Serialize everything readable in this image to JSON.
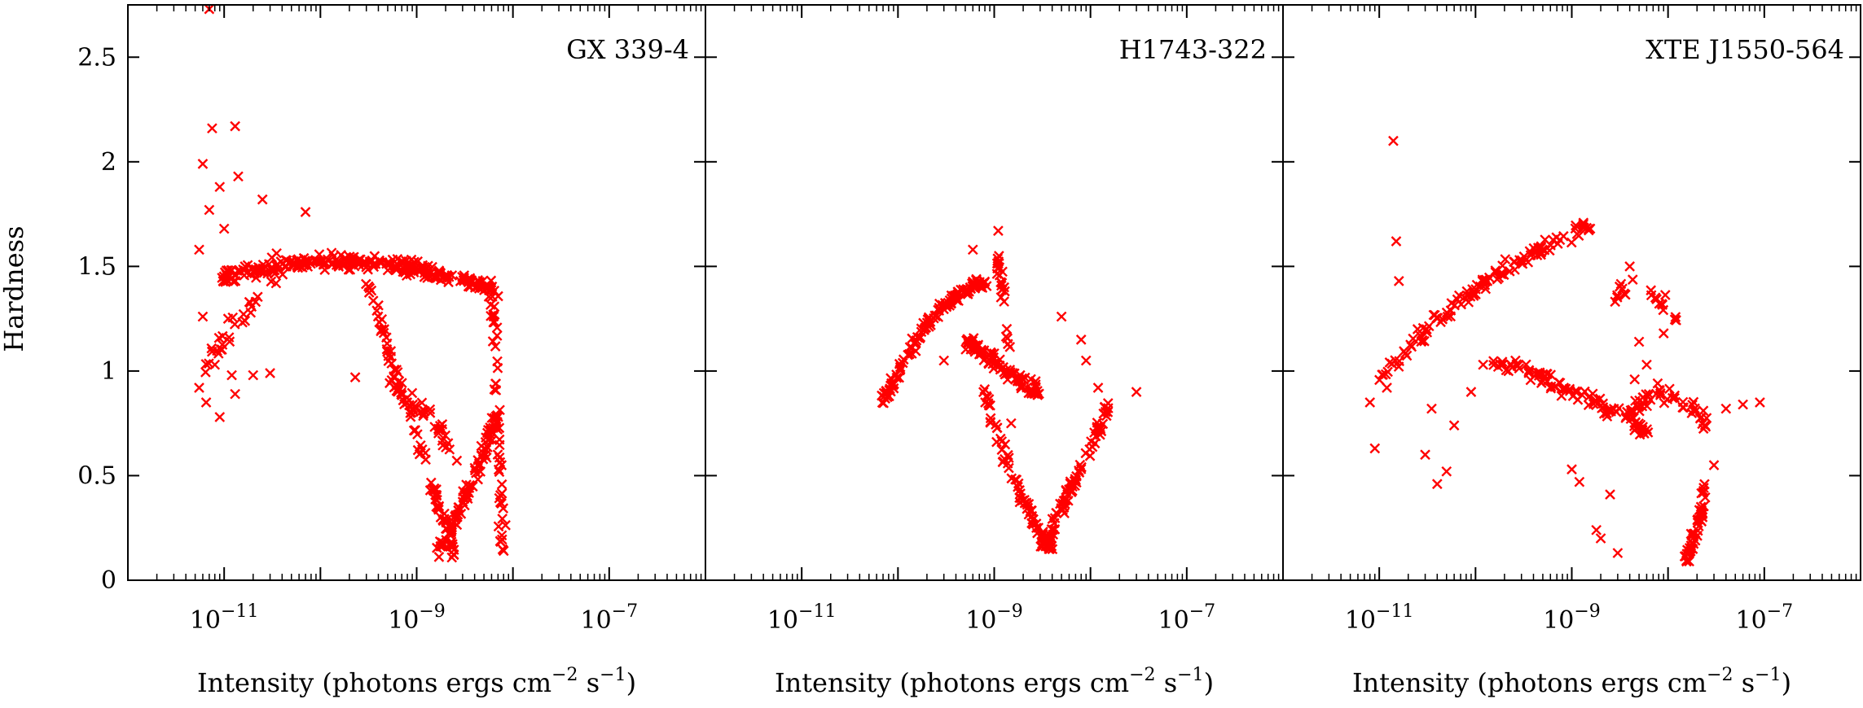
{
  "chart_data": {
    "type": "scatter",
    "x_scale": "log",
    "xlim": [
      1e-12,
      1e-06
    ],
    "ylim": [
      0,
      2.75
    ],
    "y_ticks": [
      0,
      0.5,
      1,
      1.5,
      2,
      2.5
    ],
    "y_tick_labels": [
      "0",
      "0.5",
      "1",
      "1.5",
      "2",
      "2.5"
    ],
    "x_tick_bases": [
      "10",
      "10",
      "10"
    ],
    "x_tick_exponents": [
      "−11",
      "−9",
      "−7"
    ],
    "x_tick_values": [
      1e-11,
      1e-09,
      1e-07
    ],
    "ylabel": "Hardness",
    "xlabel_prefix": "Intensity (photons ergs cm",
    "xlabel_exp1": "−2",
    "xlabel_mid": " s",
    "xlabel_exp2": "−1",
    "xlabel_suffix": ")",
    "marker": "x",
    "marker_color": "#ff0000",
    "legend": "none",
    "grid": false,
    "panels": [
      {
        "title": "GX 339-4",
        "arcs": [
          {
            "x0": 1e-11,
            "x1": 7e-09,
            "y": [
              1.45,
              1.62,
              1.38
            ],
            "n": 260,
            "noise": 0.05
          },
          {
            "x0": 3e-10,
            "x1": 2.5e-09,
            "y": [
              1.45,
              0.75,
              0.12
            ],
            "n": 90,
            "noise": 0.06
          },
          {
            "x0": 1.5e-09,
            "x1": 7e-09,
            "y": [
              0.12,
              0.35,
              0.8
            ],
            "n": 90,
            "noise": 0.06
          },
          {
            "x0": 6e-09,
            "x1": 8e-09,
            "y": [
              1.4,
              0.9,
              0.1
            ],
            "n": 50,
            "noise": 0.05
          },
          {
            "x0": 5e-10,
            "x1": 2.5e-09,
            "y": [
              0.95,
              0.85,
              0.6
            ],
            "n": 40,
            "noise": 0.08
          },
          {
            "x0": 6e-12,
            "x1": 4e-11,
            "y": [
              1.0,
              1.3,
              1.5
            ],
            "n": 30,
            "noise": 0.12
          }
        ],
        "points": [
          [
            7e-12,
            2.73
          ],
          [
            7.5e-12,
            2.16
          ],
          [
            1.3e-11,
            2.17
          ],
          [
            6e-12,
            1.99
          ],
          [
            7e-12,
            1.77
          ],
          [
            9e-12,
            1.88
          ],
          [
            1.4e-11,
            1.93
          ],
          [
            2.5e-11,
            1.82
          ],
          [
            5.5e-12,
            1.58
          ],
          [
            7e-11,
            1.76
          ],
          [
            1e-11,
            1.68
          ],
          [
            6e-12,
            1.26
          ],
          [
            5.5e-12,
            0.92
          ],
          [
            8e-12,
            1.03
          ],
          [
            1.2e-11,
            0.98
          ],
          [
            9e-12,
            0.78
          ],
          [
            1.3e-11,
            0.89
          ],
          [
            2e-11,
            0.98
          ],
          [
            6.5e-12,
            0.85
          ],
          [
            2.3e-10,
            0.97
          ],
          [
            3e-11,
            0.99
          ],
          [
            1.1e-11,
            1.25
          ]
        ]
      },
      {
        "title": "H1743-322",
        "arcs": [
          {
            "x0": 7e-11,
            "x1": 8e-10,
            "y": [
              0.85,
              1.38,
              1.42
            ],
            "n": 130,
            "noise": 0.04
          },
          {
            "x0": 5e-10,
            "x1": 3e-09,
            "y": [
              1.15,
              1.0,
              0.9
            ],
            "n": 90,
            "noise": 0.06
          },
          {
            "x0": 8e-10,
            "x1": 4e-09,
            "y": [
              0.9,
              0.35,
              0.15
            ],
            "n": 80,
            "noise": 0.05
          },
          {
            "x0": 3e-09,
            "x1": 1.6e-08,
            "y": [
              0.15,
              0.45,
              0.85
            ],
            "n": 80,
            "noise": 0.05
          },
          {
            "x0": 1.1e-09,
            "x1": 1.4e-09,
            "y": [
              1.55,
              1.35,
              1.1
            ],
            "n": 25,
            "noise": 0.04
          }
        ],
        "points": [
          [
            1.1e-09,
            1.67
          ],
          [
            6e-10,
            1.58
          ],
          [
            5e-09,
            1.26
          ],
          [
            8e-09,
            1.15
          ],
          [
            3e-08,
            0.9
          ],
          [
            1.2e-08,
            0.92
          ],
          [
            1.5e-09,
            0.75
          ],
          [
            3e-10,
            1.05
          ],
          [
            9e-09,
            1.05
          ]
        ]
      },
      {
        "title": "XTE J1550-564",
        "arcs": [
          {
            "x0": 9e-12,
            "x1": 1.6e-09,
            "y": [
              0.95,
              1.5,
              1.7
            ],
            "n": 120,
            "noise": 0.06
          },
          {
            "x0": 1.5e-10,
            "x1": 6e-09,
            "y": [
              1.05,
              0.95,
              0.7
            ],
            "n": 90,
            "noise": 0.06
          },
          {
            "x0": 4e-09,
            "x1": 2.5e-08,
            "y": [
              0.8,
              1.0,
              0.75
            ],
            "n": 50,
            "noise": 0.07
          },
          {
            "x0": 1.5e-08,
            "x1": 2.5e-08,
            "y": [
              0.1,
              0.2,
              0.45
            ],
            "n": 50,
            "noise": 0.04
          },
          {
            "x0": 2.5e-09,
            "x1": 1.2e-08,
            "y": [
              1.35,
              1.5,
              1.25
            ],
            "n": 20,
            "noise": 0.07
          }
        ],
        "points": [
          [
            1.4e-11,
            2.1
          ],
          [
            1.5e-11,
            1.62
          ],
          [
            9e-12,
            0.63
          ],
          [
            8e-12,
            0.85
          ],
          [
            1.2e-11,
            0.92
          ],
          [
            1.6e-11,
            1.43
          ],
          [
            2.5e-11,
            1.2
          ],
          [
            3e-11,
            0.6
          ],
          [
            4e-11,
            0.46
          ],
          [
            5e-11,
            0.52
          ],
          [
            3.5e-11,
            0.82
          ],
          [
            6e-11,
            0.74
          ],
          [
            9e-11,
            0.9
          ],
          [
            1e-09,
            0.53
          ],
          [
            1.2e-09,
            0.47
          ],
          [
            1.8e-09,
            0.24
          ],
          [
            2.5e-09,
            0.41
          ],
          [
            2e-09,
            0.2
          ],
          [
            3e-09,
            0.13
          ],
          [
            3.5e-09,
            1.37
          ],
          [
            4e-09,
            1.5
          ],
          [
            4.5e-09,
            0.96
          ],
          [
            5e-09,
            1.14
          ],
          [
            6e-09,
            1.03
          ],
          [
            9e-09,
            1.18
          ],
          [
            3e-08,
            0.55
          ],
          [
            6e-08,
            0.84
          ],
          [
            9e-08,
            0.85
          ],
          [
            4e-08,
            0.82
          ],
          [
            2.6e-10,
            1.05
          ],
          [
            1.2e-10,
            1.03
          ]
        ]
      }
    ]
  }
}
